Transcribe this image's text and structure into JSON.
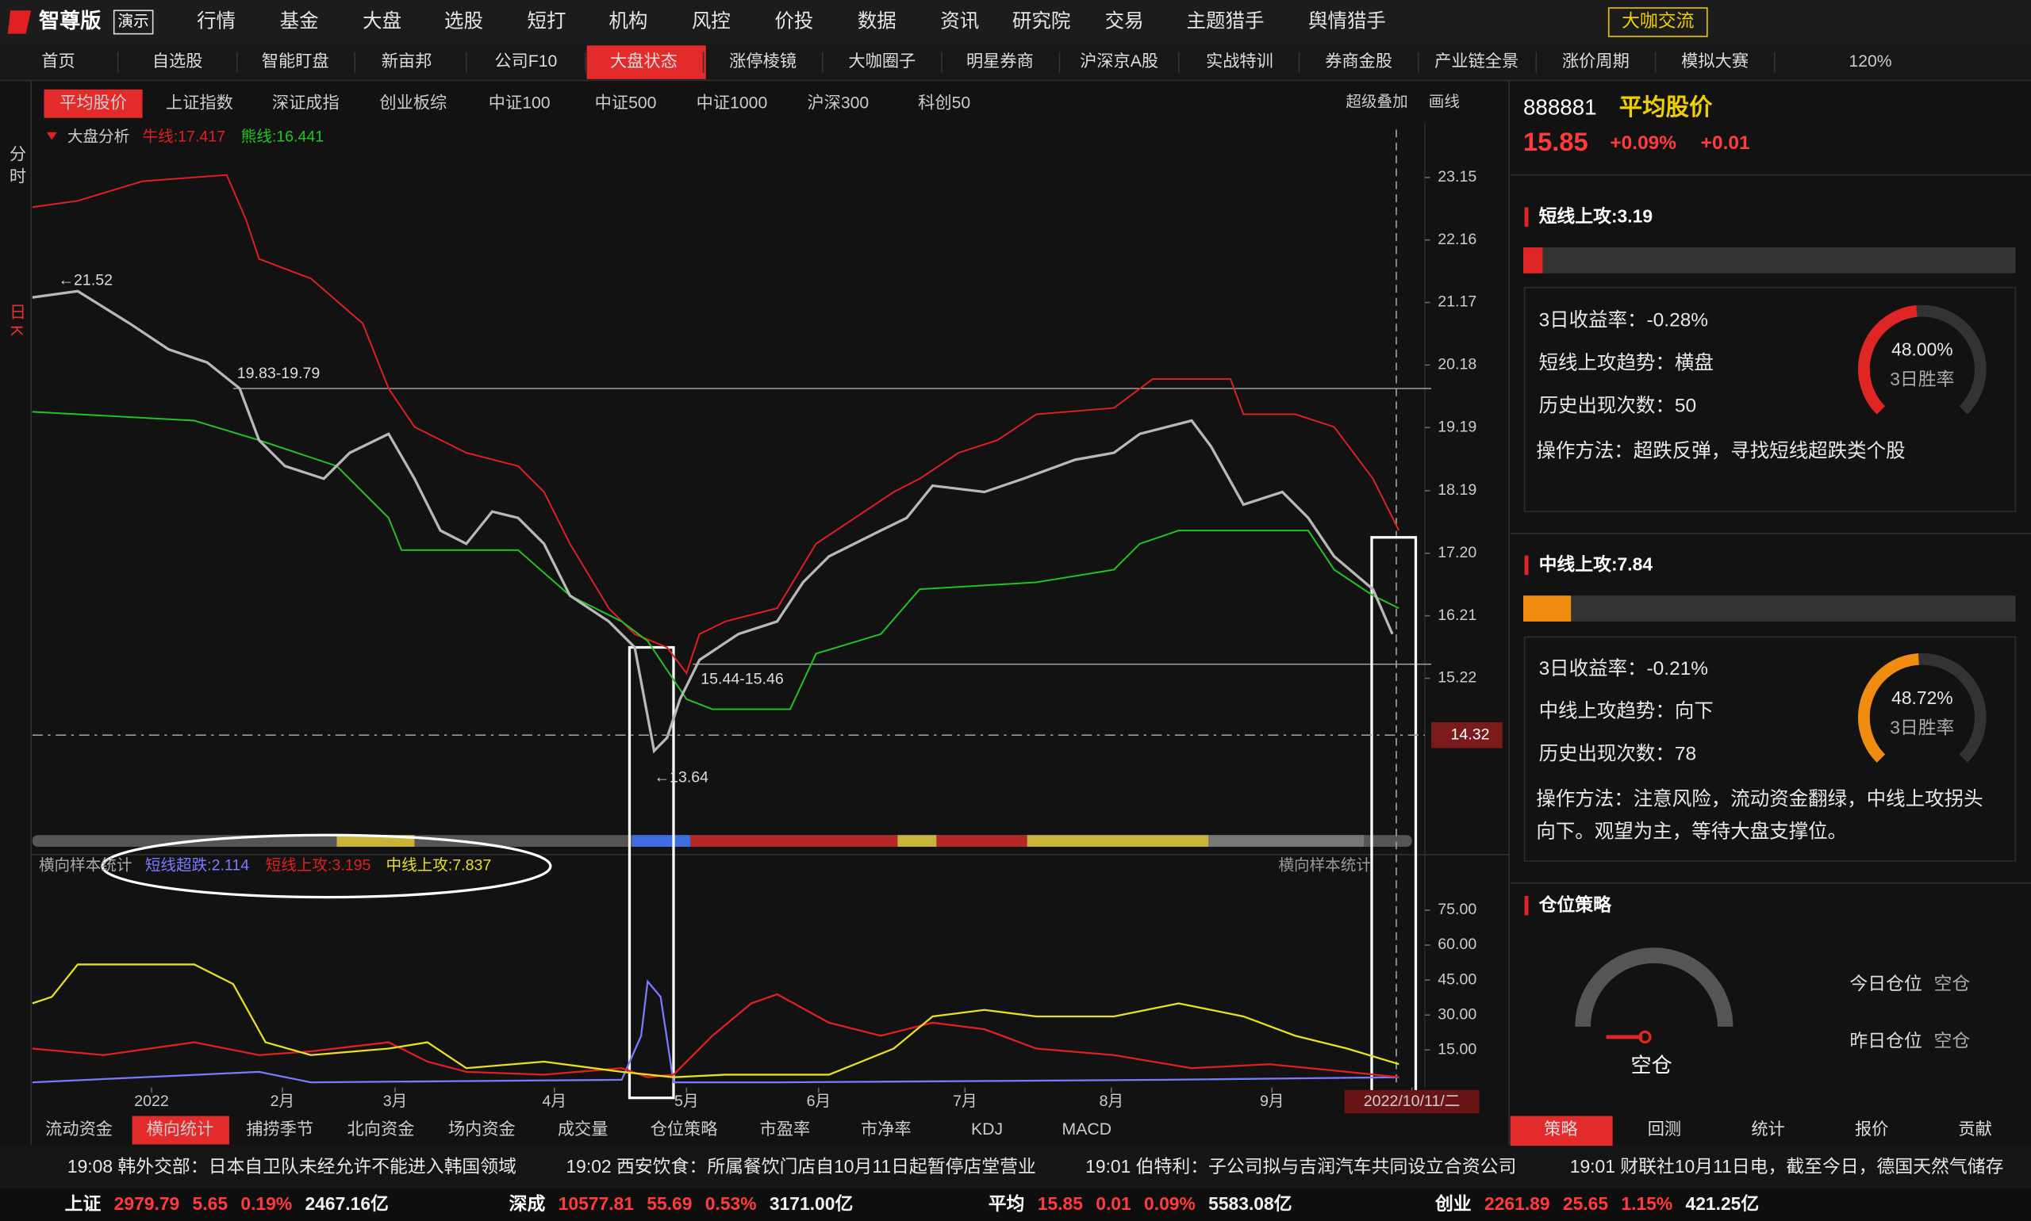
{
  "menu_bar": {
    "logo": "智尊版",
    "badge": "演示",
    "items": [
      "行情",
      "基金",
      "大盘",
      "选股",
      "短打",
      "机构",
      "风控",
      "价投",
      "数据",
      "资讯",
      "研究院",
      "交易",
      "主题猎手",
      "舆情猎手"
    ],
    "button": "大咖交流"
  },
  "tab_bar": {
    "tabs": [
      "首页",
      "自选股",
      "智能盯盘",
      "新亩邦",
      "公司F10",
      "大盘状态",
      "涨停棱镜",
      "大咖圈子",
      "明星券商",
      "沪深京A股",
      "实战特训",
      "券商金股",
      "产业链全景",
      "涨价周期",
      "模拟大赛"
    ],
    "active": 5,
    "zoom": "120%"
  },
  "index_tabs": {
    "tabs": [
      "平均股价",
      "上证指数",
      "深证成指",
      "创业板综",
      "中证100",
      "中证500",
      "中证1000",
      "沪深300",
      "科创50"
    ],
    "active": 0,
    "tools": [
      "超级叠加",
      "画线"
    ]
  },
  "side_tabs": [
    "分时",
    "日K"
  ],
  "main_chart": {
    "type": "line",
    "legend_title": "大盘分析",
    "xlim": [
      0,
      215
    ],
    "ylim": [
      12.84,
      24.01
    ],
    "yticks": [
      23.15,
      22.16,
      21.17,
      20.18,
      19.19,
      18.19,
      {
        "value": 17.2,
        "label": "17.20"
      },
      16.21,
      15.22
    ],
    "current_price": 14.32,
    "annotations": [
      "←21.52",
      "19.83-19.79",
      "15.44-15.46",
      "←13.64"
    ],
    "series": [
      {
        "name": "牛线:17.417",
        "color": "#e02020",
        "x": [
          0,
          7,
          17,
          30,
          33,
          35,
          43,
          51,
          55,
          59,
          67,
          75,
          79,
          83,
          89,
          93,
          98,
          101,
          103,
          107,
          115,
          121,
          127,
          133,
          137,
          143,
          149,
          155,
          167,
          173,
          185,
          187,
          195,
          201,
          207,
          211
        ],
        "values": [
          22.68,
          22.78,
          23.09,
          23.19,
          22.48,
          21.86,
          21.55,
          20.84,
          19.81,
          19.2,
          18.79,
          18.58,
          18.17,
          17.35,
          16.33,
          15.92,
          15.71,
          15.3,
          15.92,
          16.12,
          16.33,
          17.35,
          17.76,
          18.17,
          18.38,
          18.79,
          18.99,
          19.4,
          19.5,
          19.96,
          19.96,
          19.4,
          19.4,
          19.2,
          18.38,
          17.56
        ]
      },
      {
        "name": "熊线:16.441",
        "color": "#22c522",
        "x": [
          0,
          25,
          35,
          47,
          55,
          57,
          75,
          83,
          91,
          95,
          101,
          105,
          117,
          121,
          131,
          137,
          155,
          167,
          171,
          177,
          197,
          201,
          207,
          211
        ],
        "values": [
          19.44,
          19.3,
          18.99,
          18.58,
          17.76,
          17.25,
          17.25,
          16.53,
          16.12,
          15.81,
          14.89,
          14.73,
          14.73,
          15.61,
          15.92,
          16.63,
          16.74,
          16.94,
          17.35,
          17.56,
          17.56,
          16.94,
          16.53,
          16.33
        ]
      },
      {
        "color": "#b8b8b8",
        "x": [
          0,
          7,
          15,
          21,
          27,
          32,
          35,
          39,
          45,
          49,
          55,
          59,
          63,
          67,
          71,
          75,
          79,
          83,
          89,
          93,
          96,
          98,
          100,
          103,
          109,
          115,
          119,
          123,
          131,
          135,
          139,
          147,
          153,
          161,
          167,
          171,
          179,
          182,
          187,
          193,
          197,
          201,
          207,
          210
        ],
        "values": [
          21.25,
          21.35,
          20.84,
          20.43,
          20.22,
          19.81,
          18.99,
          18.58,
          18.38,
          18.79,
          19.09,
          18.38,
          17.56,
          17.35,
          17.86,
          17.76,
          17.35,
          16.53,
          16.12,
          15.71,
          14.07,
          14.28,
          14.89,
          15.51,
          15.92,
          16.12,
          16.74,
          17.15,
          17.56,
          17.76,
          18.27,
          18.17,
          18.38,
          18.68,
          18.79,
          19.09,
          19.3,
          18.89,
          17.97,
          18.17,
          17.76,
          17.15,
          16.63,
          15.92
        ]
      }
    ]
  },
  "indicator_chart": {
    "type": "line",
    "legend_title": "横向样本统计",
    "right_title": "横向样本统计",
    "xlim": [
      0,
      215
    ],
    "ylim": [
      0,
      87.78
    ],
    "yticks": [
      {
        "value": 75,
        "label": "75.00"
      },
      {
        "value": 60,
        "label": "60.00"
      },
      {
        "value": 45,
        "label": "45.00"
      },
      {
        "value": 30,
        "label": "30.00"
      },
      {
        "value": 15,
        "label": "15.00"
      }
    ],
    "xticks": [
      {
        "value": 18.4,
        "label": "2022"
      },
      {
        "value": 38.6,
        "label": "2月"
      },
      {
        "value": 56,
        "label": "3月"
      },
      {
        "value": 80.6,
        "label": "4月"
      },
      {
        "value": 101,
        "label": "5月"
      },
      {
        "value": 121.4,
        "label": "6月"
      },
      {
        "value": 144,
        "label": "7月"
      },
      {
        "value": 166.6,
        "label": "8月"
      },
      {
        "value": 191.4,
        "label": "9月"
      },
      {
        "value": 213,
        "label": "2022/10/11/二"
      }
    ],
    "series": [
      {
        "name": "短线超跌:2.114",
        "color": "#7a7aff",
        "x": [
          0,
          35,
          43,
          91,
          94,
          95,
          97,
          99,
          115,
          175,
          211
        ],
        "values": [
          1.1,
          5.6,
          1.1,
          2.2,
          21.1,
          44.4,
          37.8,
          1.1,
          1.1,
          2.2,
          3.3
        ]
      },
      {
        "name": "短线上攻:3.195",
        "color": "#e02020",
        "x": [
          0,
          11,
          25,
          35,
          43,
          55,
          61,
          67,
          79,
          91,
          95,
          99,
          105,
          111,
          115,
          123,
          131,
          139,
          147,
          155,
          167,
          179,
          191,
          203,
          211
        ],
        "values": [
          15.6,
          12.8,
          18.3,
          12.8,
          14.4,
          18.3,
          10,
          5.6,
          4.4,
          7.2,
          3.3,
          4.4,
          21.1,
          35,
          38.9,
          26.7,
          21.1,
          26.7,
          23.9,
          15.6,
          12.8,
          7.2,
          8.9,
          5.6,
          3.3
        ]
      },
      {
        "name": "中线上攻:7.837",
        "color": "#e8e020",
        "x": [
          0,
          3,
          7,
          25,
          31,
          36,
          43,
          55,
          61,
          67,
          79,
          91,
          99,
          107,
          123,
          133,
          139,
          147,
          155,
          167,
          177,
          187,
          195,
          203,
          211
        ],
        "values": [
          35,
          37.8,
          51.7,
          51.7,
          43.3,
          18.3,
          12.8,
          15.6,
          18.3,
          7.2,
          10,
          5.6,
          3.3,
          4.4,
          4.4,
          15.6,
          29.4,
          32.2,
          29.4,
          29.4,
          35,
          29.4,
          21.1,
          15.6,
          8.9
        ]
      }
    ]
  },
  "chart_tabs": {
    "tabs": [
      "流动资金",
      "横向统计",
      "捕捞季节",
      "北向资金",
      "场内资金",
      "成交量",
      "仓位策略",
      "市盈率",
      "市净率",
      "KDJ",
      "MACD"
    ],
    "active": 1
  },
  "right_panel": {
    "code": "888881",
    "name": "平均股价",
    "price": "15.85",
    "pct": "+0.09%",
    "change": "+0.01",
    "sections": [
      {
        "title": "短线上攻:3.19",
        "level": 3.19,
        "color": "#e02525",
        "rows": [
          "3日收益率：-0.28%",
          "短线上攻趋势：横盘",
          "历史出现次数：50"
        ],
        "method": "操作方法：超跌反弹，寻找短线超跌类个股",
        "gauge": {
          "value": 48,
          "label": "48.00%"
        },
        "gauge_title": "3日胜率"
      },
      {
        "title": "中线上攻:7.84",
        "level": 7.84,
        "color": "#f08c10",
        "rows": [
          "3日收益率：-0.21%",
          "中线上攻趋势：向下",
          "历史出现次数：78"
        ],
        "method": "操作方法：注意风险，流动资金翻绿，中线上攻拐头向下。观望为主，等待大盘支撑位。",
        "gauge": {
          "value": 48.72,
          "label": "48.72%"
        },
        "gauge_title": "3日胜率"
      }
    ],
    "position": {
      "title": "仓位策略",
      "state": "空仓",
      "today_label": "今日仓位",
      "today": "空仓",
      "yesterday_label": "昨日仓位",
      "yesterday": "空仓"
    }
  },
  "strategy_tabs": {
    "tabs": [
      "策略",
      "回测",
      "统计",
      "报价",
      "贡献"
    ],
    "active": 0
  },
  "news": [
    "19:08 韩外交部：日本自卫队未经允许不能进入韩国领域",
    "19:02 西安饮食：所属餐饮门店自10月11日起暂停店堂营业",
    "19:01 伯特利：子公司拟与吉润汽车共同设立合资公司",
    "19:01 财联社10月11日电，截至今日，德国天然气储存"
  ],
  "status_bar": [
    {
      "name": "上证",
      "price": "2979.79",
      "change": "5.65",
      "pct": "0.19%",
      "volume": "2467.16亿"
    },
    {
      "name": "深成",
      "price": "10577.81",
      "change": "55.69",
      "pct": "0.53%",
      "volume": "3171.00亿"
    },
    {
      "name": "平均",
      "price": "15.85",
      "change": "0.01",
      "pct": "0.09%",
      "volume": "5583.08亿"
    },
    {
      "name": "创业",
      "price": "2261.89",
      "change": "25.65",
      "pct": "1.15%",
      "volume": "421.25亿"
    }
  ]
}
